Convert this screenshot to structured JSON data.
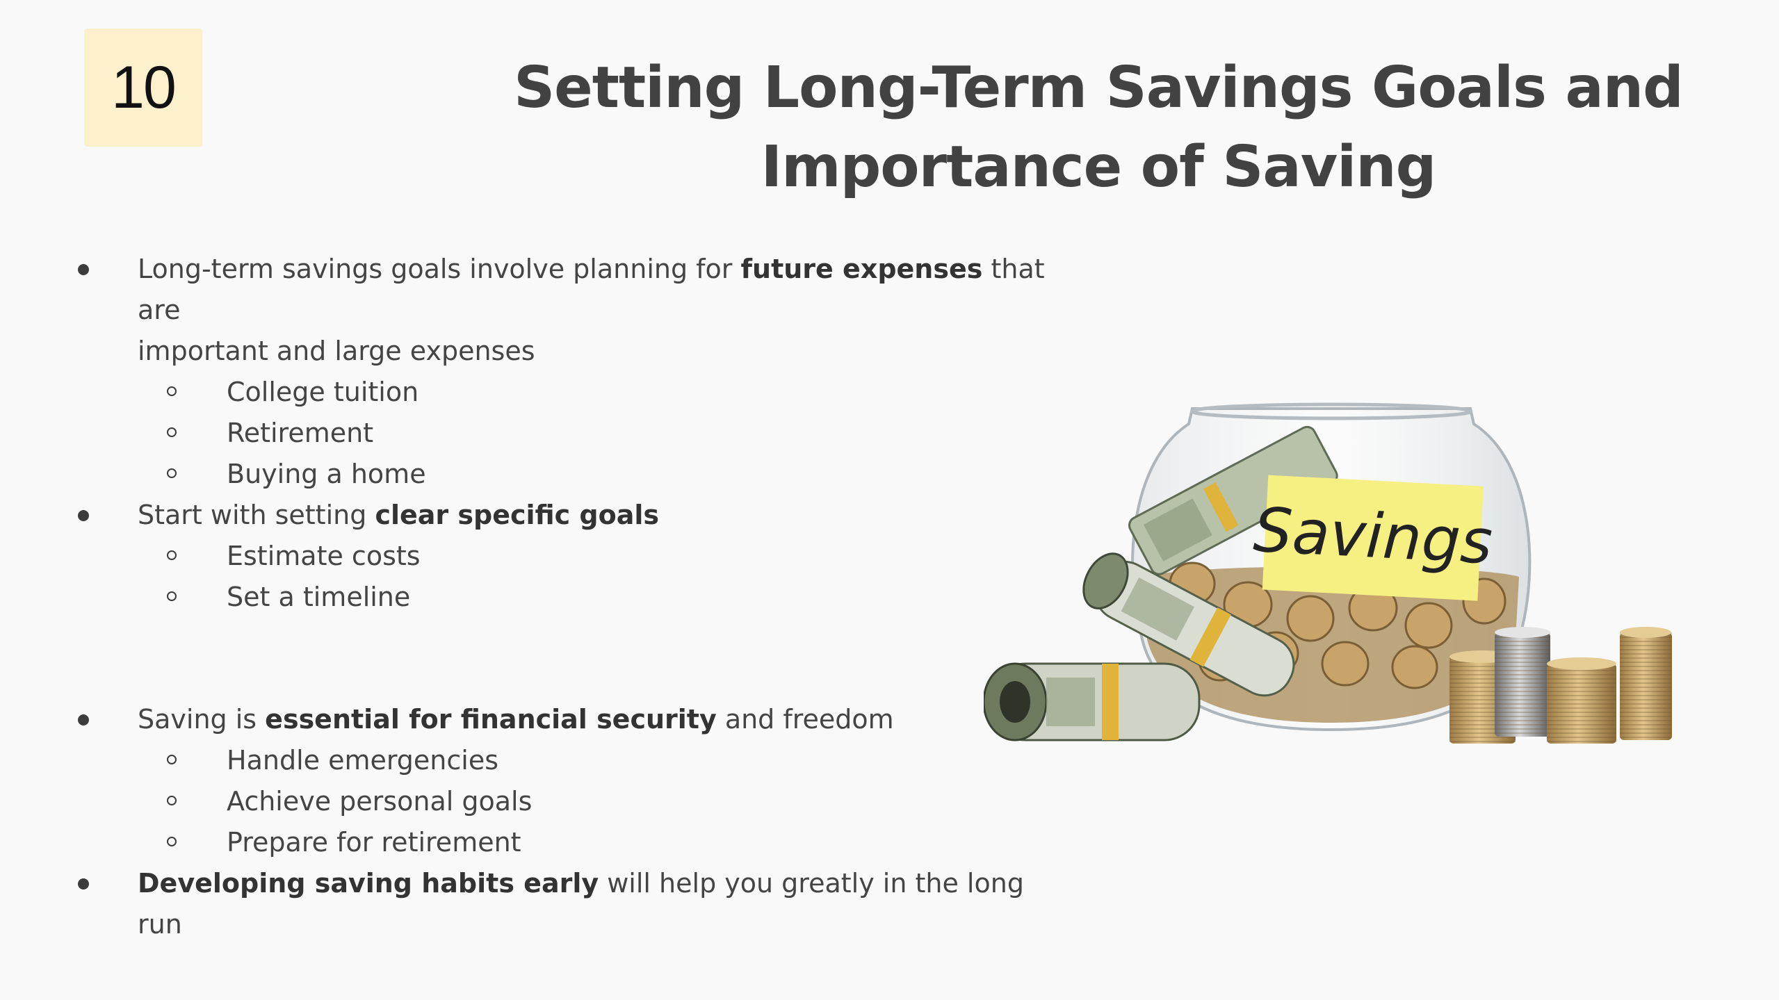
{
  "slide": {
    "number": "10",
    "title_line1": "Setting Long-Term Savings Goals and",
    "title_line2": "Importance of Saving"
  },
  "bullets": {
    "b1": {
      "before": "Long-term savings goals involve planning for ",
      "bold": "future expenses",
      "after": " that are",
      "line2": "important and large expenses"
    },
    "b1_sub": [
      "College tuition",
      "Retirement",
      "Buying a home"
    ],
    "b2": {
      "before": "Start with setting ",
      "bold": "clear specific goals"
    },
    "b2_sub": [
      "Estimate costs",
      "Set a timeline"
    ],
    "b3": {
      "before": "Saving is ",
      "bold": "essential for financial security",
      "after": " and freedom"
    },
    "b3_sub": [
      "Handle emergencies",
      "Achieve personal goals",
      "Prepare for retirement"
    ],
    "b4": {
      "bold": "Developing saving habits early",
      "after": " will help you greatly in the long run"
    }
  },
  "image": {
    "jar_label": "Savings",
    "colors": {
      "label": "#f6ef82",
      "coin": "#c9a46a",
      "bill": "#b7c2a8",
      "band": "#e0b43a"
    }
  }
}
